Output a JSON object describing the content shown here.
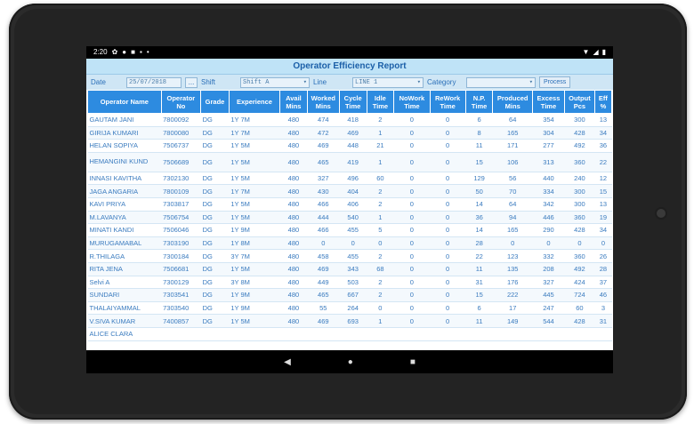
{
  "status": {
    "time": "2:20"
  },
  "report": {
    "title": "Operator Efficiency Report",
    "filters": {
      "date_label": "Date",
      "date_value": "25/07/2018",
      "dots_label": "...",
      "shift_label": "Shift",
      "shift_value": "Shift A",
      "line_label": "Line",
      "line_value": "LINE 1",
      "category_label": "Category",
      "category_value": "",
      "process_label": "Process"
    },
    "columns": [
      "Operator Name",
      "Operator No",
      "Grade",
      "Experience",
      "Avail Mins",
      "Worked Mins",
      "Cycle Time",
      "Idle Time",
      "NoWork Time",
      "ReWork Time",
      "N.P. Time",
      "Produced Mins",
      "Excess Time",
      "Output Pcs",
      "Eff %"
    ],
    "rows": [
      [
        "GAUTAM JANI",
        "7800092",
        "DG",
        "1Y 7M",
        "480",
        "474",
        "418",
        "2",
        "0",
        "0",
        "6",
        "64",
        "354",
        "300",
        "13"
      ],
      [
        "GIRIJA KUMARI",
        "7800080",
        "DG",
        "1Y 7M",
        "480",
        "472",
        "469",
        "1",
        "0",
        "0",
        "8",
        "165",
        "304",
        "428",
        "34"
      ],
      [
        "HELAN SOPIYA",
        "7506737",
        "DG",
        "1Y 5M",
        "480",
        "469",
        "448",
        "21",
        "0",
        "0",
        "11",
        "171",
        "277",
        "492",
        "36"
      ],
      [
        "HEMANGINI KUND",
        "7506689",
        "DG",
        "1Y 5M",
        "480",
        "465",
        "419",
        "1",
        "0",
        "0",
        "15",
        "106",
        "313",
        "360",
        "22"
      ],
      [
        "INNASI KAVITHA",
        "7302130",
        "DG",
        "1Y 5M",
        "480",
        "327",
        "496",
        "60",
        "0",
        "0",
        "129",
        "56",
        "440",
        "240",
        "12"
      ],
      [
        "JAGA ANGARIA",
        "7800109",
        "DG",
        "1Y 7M",
        "480",
        "430",
        "404",
        "2",
        "0",
        "0",
        "50",
        "70",
        "334",
        "300",
        "15"
      ],
      [
        "KAVI PRIYA",
        "7303817",
        "DG",
        "1Y 5M",
        "480",
        "466",
        "406",
        "2",
        "0",
        "0",
        "14",
        "64",
        "342",
        "300",
        "13"
      ],
      [
        "M.LAVANYA",
        "7506754",
        "DG",
        "1Y 5M",
        "480",
        "444",
        "540",
        "1",
        "0",
        "0",
        "36",
        "94",
        "446",
        "360",
        "19"
      ],
      [
        "MINATI KANDI",
        "7506046",
        "DG",
        "1Y 9M",
        "480",
        "466",
        "455",
        "5",
        "0",
        "0",
        "14",
        "165",
        "290",
        "428",
        "34"
      ],
      [
        "MURUGAMABAL",
        "7303190",
        "DG",
        "1Y 8M",
        "480",
        "0",
        "0",
        "0",
        "0",
        "0",
        "28",
        "0",
        "0",
        "0",
        "0"
      ],
      [
        "R.THILAGA",
        "7300184",
        "DG",
        "3Y 7M",
        "480",
        "458",
        "455",
        "2",
        "0",
        "0",
        "22",
        "123",
        "332",
        "360",
        "26"
      ],
      [
        "RITA JENA",
        "7506681",
        "DG",
        "1Y 5M",
        "480",
        "469",
        "343",
        "68",
        "0",
        "0",
        "11",
        "135",
        "208",
        "492",
        "28"
      ],
      [
        "Selvi A",
        "7300129",
        "DG",
        "3Y 8M",
        "480",
        "449",
        "503",
        "2",
        "0",
        "0",
        "31",
        "176",
        "327",
        "424",
        "37"
      ],
      [
        "SUNDARI",
        "7303541",
        "DG",
        "1Y 9M",
        "480",
        "465",
        "667",
        "2",
        "0",
        "0",
        "15",
        "222",
        "445",
        "724",
        "46"
      ],
      [
        "THALAIYAMMAL",
        "7303540",
        "DG",
        "1Y 9M",
        "480",
        "55",
        "264",
        "0",
        "0",
        "0",
        "6",
        "17",
        "247",
        "60",
        "3"
      ],
      [
        "V.SIVA KUMAR",
        "7400857",
        "DG",
        "1Y 5M",
        "480",
        "469",
        "693",
        "1",
        "0",
        "0",
        "11",
        "149",
        "544",
        "428",
        "31"
      ],
      [
        "ALICE CLARA",
        "",
        "",
        "",
        "",
        "",
        "",
        "",
        "",
        "",
        "",
        "",
        "",
        "",
        ""
      ]
    ]
  },
  "nav": {
    "back": "◀",
    "home": "●",
    "recents": "■"
  }
}
